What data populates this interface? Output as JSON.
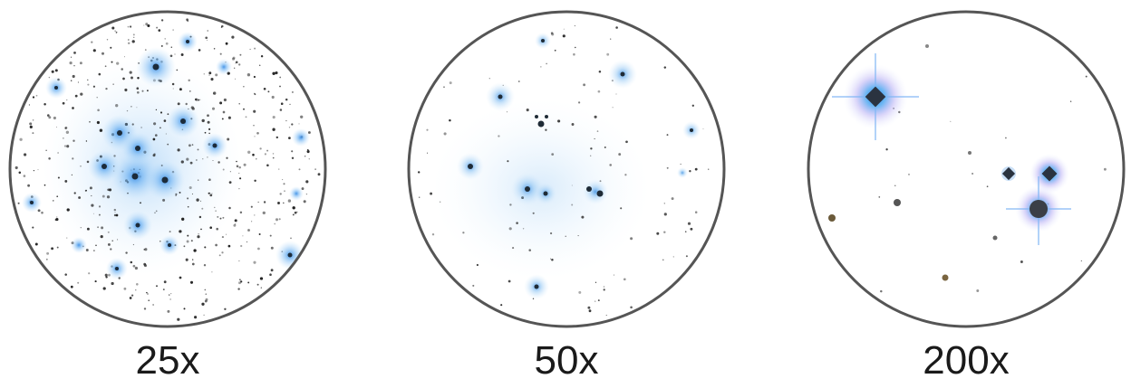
{
  "views": [
    {
      "label": "25x",
      "accent": "#3b8fe0"
    },
    {
      "label": "50x",
      "accent": "#4aa0e8"
    },
    {
      "label": "200x",
      "accent": "#2f7fe6"
    }
  ]
}
